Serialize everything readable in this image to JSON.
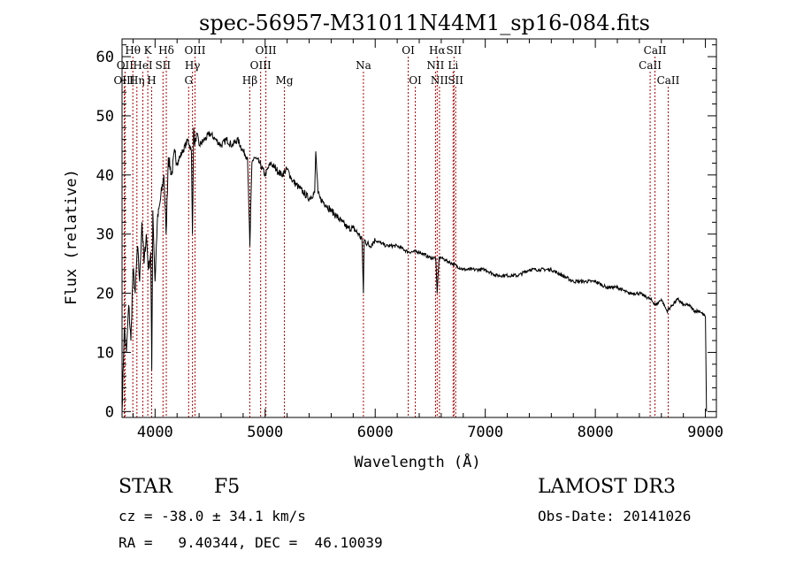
{
  "chart_data": {
    "type": "line",
    "title": "spec-56957-M31011N44M1_sp16-084.fits",
    "xlabel": "Wavelength (Å)",
    "ylabel": "Flux (relative)",
    "xlim": [
      3700,
      9100
    ],
    "ylim": [
      -1,
      63
    ],
    "xticks": [
      4000,
      5000,
      6000,
      7000,
      8000,
      9000
    ],
    "yticks": [
      0,
      10,
      20,
      30,
      40,
      50,
      60
    ],
    "series": [
      {
        "name": "flux",
        "x": [
          3700,
          3720,
          3740,
          3760,
          3780,
          3800,
          3820,
          3840,
          3860,
          3880,
          3900,
          3920,
          3940,
          3960,
          3970,
          3980,
          4000,
          4020,
          4050,
          4080,
          4100,
          4120,
          4150,
          4180,
          4200,
          4250,
          4300,
          4330,
          4340,
          4350,
          4360,
          4380,
          4400,
          4450,
          4500,
          4550,
          4600,
          4650,
          4700,
          4750,
          4800,
          4840,
          4861,
          4880,
          4900,
          4950,
          5000,
          5050,
          5100,
          5150,
          5200,
          5250,
          5300,
          5350,
          5400,
          5450,
          5460,
          5480,
          5500,
          5550,
          5600,
          5650,
          5700,
          5750,
          5800,
          5850,
          5880,
          5893,
          5900,
          5950,
          6000,
          6100,
          6200,
          6300,
          6400,
          6500,
          6550,
          6563,
          6580,
          6600,
          6700,
          6800,
          6900,
          7000,
          7100,
          7200,
          7300,
          7400,
          7500,
          7600,
          7700,
          7800,
          7900,
          8000,
          8100,
          8200,
          8300,
          8400,
          8500,
          8550,
          8600,
          8650,
          8700,
          8750,
          8800,
          8850,
          8900,
          8950,
          9000,
          9010
        ],
        "y": [
          0,
          14,
          10,
          18,
          12,
          24,
          20,
          28,
          22,
          32,
          25,
          30,
          24,
          27,
          7,
          34,
          22,
          32,
          36,
          40,
          30,
          43,
          40,
          44,
          42,
          44,
          46,
          44,
          30,
          48,
          45,
          47,
          45,
          46,
          47,
          46,
          45,
          46,
          45,
          46,
          44,
          43,
          28,
          42,
          43,
          42,
          40,
          42,
          41,
          40,
          41,
          39,
          38,
          37,
          36,
          37,
          44,
          37,
          36,
          35,
          34,
          33,
          32,
          31,
          31,
          30,
          29,
          20,
          29,
          28,
          29,
          28,
          28,
          27,
          27,
          26,
          26,
          20,
          26,
          26,
          25,
          24,
          24,
          24,
          23,
          23,
          23,
          24,
          24,
          24,
          23,
          22,
          22,
          22,
          21,
          21,
          20,
          20,
          19,
          18,
          19,
          17,
          18,
          19,
          18,
          18,
          17,
          17,
          16,
          0
        ]
      }
    ],
    "line_markers": [
      {
        "label": "Hθ",
        "wavelength": 3798,
        "row": 0
      },
      {
        "label": "OII",
        "wavelength": 3727,
        "row": 1
      },
      {
        "label": "OIII",
        "wavelength": 3720,
        "row": 2
      },
      {
        "label": "K",
        "wavelength": 3934,
        "row": 0
      },
      {
        "label": "HeI",
        "wavelength": 3889,
        "row": 1
      },
      {
        "label": "Hη",
        "wavelength": 3835,
        "row": 2
      },
      {
        "label": "Hδ",
        "wavelength": 4102,
        "row": 0
      },
      {
        "label": "SII",
        "wavelength": 4072,
        "row": 1
      },
      {
        "label": "H",
        "wavelength": 3969,
        "row": 2
      },
      {
        "label": "OIII",
        "wavelength": 4363,
        "row": 0
      },
      {
        "label": "Hγ",
        "wavelength": 4340,
        "row": 1
      },
      {
        "label": "G",
        "wavelength": 4305,
        "row": 2
      },
      {
        "label": "OIII",
        "wavelength": 5007,
        "row": 0
      },
      {
        "label": "OIII",
        "wavelength": 4959,
        "row": 1
      },
      {
        "label": "Hβ",
        "wavelength": 4861,
        "row": 2
      },
      {
        "label": "Mg",
        "wavelength": 5175,
        "row": 2
      },
      {
        "label": "Na",
        "wavelength": 5893,
        "row": 1
      },
      {
        "label": "OI",
        "wavelength": 6300,
        "row": 0
      },
      {
        "label": "OI",
        "wavelength": 6364,
        "row": 2
      },
      {
        "label": "Hα",
        "wavelength": 6563,
        "row": 0
      },
      {
        "label": "NII",
        "wavelength": 6548,
        "row": 1
      },
      {
        "label": "NII",
        "wavelength": 6584,
        "row": 2
      },
      {
        "label": "SII",
        "wavelength": 6716,
        "row": 0
      },
      {
        "label": "Li",
        "wavelength": 6708,
        "row": 1
      },
      {
        "label": "SII",
        "wavelength": 6731,
        "row": 2
      },
      {
        "label": "CaII",
        "wavelength": 8542,
        "row": 0
      },
      {
        "label": "CaII",
        "wavelength": 8498,
        "row": 1
      },
      {
        "label": "CaII",
        "wavelength": 8662,
        "row": 2
      }
    ]
  },
  "info": {
    "object_class": "STAR",
    "subclass": "F5",
    "survey": "LAMOST DR3",
    "redshift": "cz = -38.0 ± 34.1 km/s",
    "obs_date": "Obs-Date: 20141026",
    "coords": "RA =   9.40344, DEC =  46.10039"
  }
}
